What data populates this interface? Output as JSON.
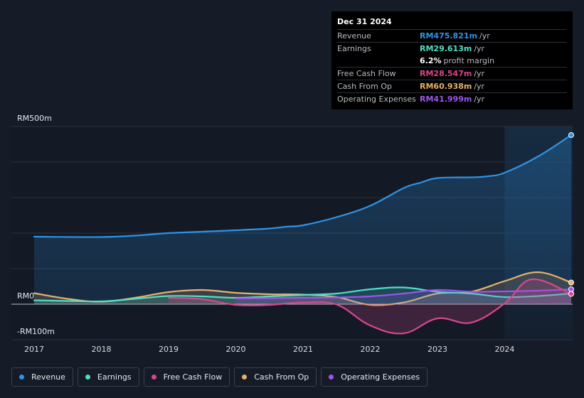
{
  "tooltip": {
    "date": "Dec 31 2024",
    "rows": [
      {
        "label": "Revenue",
        "value": "RM475.821m",
        "unit": "/yr",
        "color": "#2e93e6"
      },
      {
        "label": "Earnings",
        "value": "RM29.613m",
        "unit": "/yr",
        "color": "#4fe0c4"
      },
      {
        "label": "",
        "value": "6.2%",
        "unit": "profit margin",
        "color": "#ffffff"
      },
      {
        "label": "Free Cash Flow",
        "value": "RM28.547m",
        "unit": "/yr",
        "color": "#d9468f"
      },
      {
        "label": "Cash From Op",
        "value": "RM60.938m",
        "unit": "/yr",
        "color": "#eab06a"
      },
      {
        "label": "Operating Expenses",
        "value": "RM41.999m",
        "unit": "/yr",
        "color": "#a054f0"
      }
    ]
  },
  "colors": {
    "background": "#151b27",
    "revenue": "#2e93e6",
    "earnings": "#4fe0c4",
    "fcf": "#d9468f",
    "cfo": "#eab06a",
    "opex": "#a054f0",
    "grid": "#2b3140"
  },
  "chart_data": {
    "type": "line",
    "title": "",
    "xlabel": "",
    "ylabel": "",
    "ylim": [
      -100,
      500
    ],
    "y_ticks": [
      {
        "value": 500,
        "label": "RM500m"
      },
      {
        "value": 0,
        "label": "RM0"
      },
      {
        "value": -100,
        "label": "-RM100m"
      }
    ],
    "xlim": [
      2017,
      2024.99
    ],
    "x_ticks": [
      {
        "value": 2017,
        "label": "2017"
      },
      {
        "value": 2018,
        "label": "2018"
      },
      {
        "value": 2019,
        "label": "2019"
      },
      {
        "value": 2020,
        "label": "2020"
      },
      {
        "value": 2021,
        "label": "2021"
      },
      {
        "value": 2022,
        "label": "2022"
      },
      {
        "value": 2023,
        "label": "2023"
      },
      {
        "value": 2024,
        "label": "2024"
      }
    ],
    "highlight_start": 2024,
    "series": [
      {
        "name": "Revenue",
        "key": "revenue",
        "points": [
          [
            2017,
            190
          ],
          [
            2018,
            189
          ],
          [
            2018.5,
            193
          ],
          [
            2019,
            200
          ],
          [
            2019.5,
            204
          ],
          [
            2020,
            208
          ],
          [
            2020.5,
            213
          ],
          [
            2020.75,
            218
          ],
          [
            2021,
            222
          ],
          [
            2021.5,
            245
          ],
          [
            2022,
            277
          ],
          [
            2022.5,
            327
          ],
          [
            2022.75,
            342
          ],
          [
            2023,
            355
          ],
          [
            2023.5,
            357
          ],
          [
            2023.75,
            360
          ],
          [
            2024,
            370
          ],
          [
            2024.5,
            416
          ],
          [
            2024.99,
            476
          ]
        ]
      },
      {
        "name": "Earnings",
        "key": "earnings",
        "points": [
          [
            2017,
            11
          ],
          [
            2017.5,
            9
          ],
          [
            2018,
            8
          ],
          [
            2018.5,
            15
          ],
          [
            2019,
            23
          ],
          [
            2019.5,
            22
          ],
          [
            2020,
            18
          ],
          [
            2020.5,
            22
          ],
          [
            2021,
            26
          ],
          [
            2021.5,
            30
          ],
          [
            2022,
            42
          ],
          [
            2022.5,
            47
          ],
          [
            2023,
            35
          ],
          [
            2023.5,
            30
          ],
          [
            2024,
            20
          ],
          [
            2024.5,
            23
          ],
          [
            2024.99,
            30
          ]
        ]
      },
      {
        "name": "Free Cash Flow",
        "key": "fcf",
        "points": [
          [
            2019,
            18
          ],
          [
            2019.5,
            14
          ],
          [
            2020,
            -2
          ],
          [
            2020.5,
            -2
          ],
          [
            2021,
            5
          ],
          [
            2021.5,
            -1
          ],
          [
            2022,
            -60
          ],
          [
            2022.5,
            -82
          ],
          [
            2023,
            -40
          ],
          [
            2023.5,
            -52
          ],
          [
            2024,
            2
          ],
          [
            2024.4,
            70
          ],
          [
            2024.99,
            29
          ]
        ]
      },
      {
        "name": "Cash From Op",
        "key": "cfo",
        "points": [
          [
            2017,
            31
          ],
          [
            2017.5,
            15
          ],
          [
            2018,
            7
          ],
          [
            2018.5,
            18
          ],
          [
            2019,
            34
          ],
          [
            2019.5,
            40
          ],
          [
            2020,
            32
          ],
          [
            2020.5,
            28
          ],
          [
            2021,
            27
          ],
          [
            2021.5,
            20
          ],
          [
            2022,
            -2
          ],
          [
            2022.5,
            5
          ],
          [
            2023,
            30
          ],
          [
            2023.5,
            35
          ],
          [
            2024,
            65
          ],
          [
            2024.5,
            90
          ],
          [
            2024.99,
            61
          ]
        ]
      },
      {
        "name": "Operating Expenses",
        "key": "opex",
        "points": [
          [
            2020,
            16
          ],
          [
            2020.5,
            17
          ],
          [
            2021,
            18
          ],
          [
            2021.5,
            19
          ],
          [
            2022,
            22
          ],
          [
            2022.5,
            30
          ],
          [
            2023,
            40
          ],
          [
            2023.5,
            35
          ],
          [
            2024,
            36
          ],
          [
            2024.5,
            38
          ],
          [
            2024.99,
            42
          ]
        ]
      }
    ]
  },
  "legend": [
    {
      "label": "Revenue",
      "color": "#2e93e6"
    },
    {
      "label": "Earnings",
      "color": "#4fe0c4"
    },
    {
      "label": "Free Cash Flow",
      "color": "#d9468f"
    },
    {
      "label": "Cash From Op",
      "color": "#eab06a"
    },
    {
      "label": "Operating Expenses",
      "color": "#a054f0"
    }
  ]
}
